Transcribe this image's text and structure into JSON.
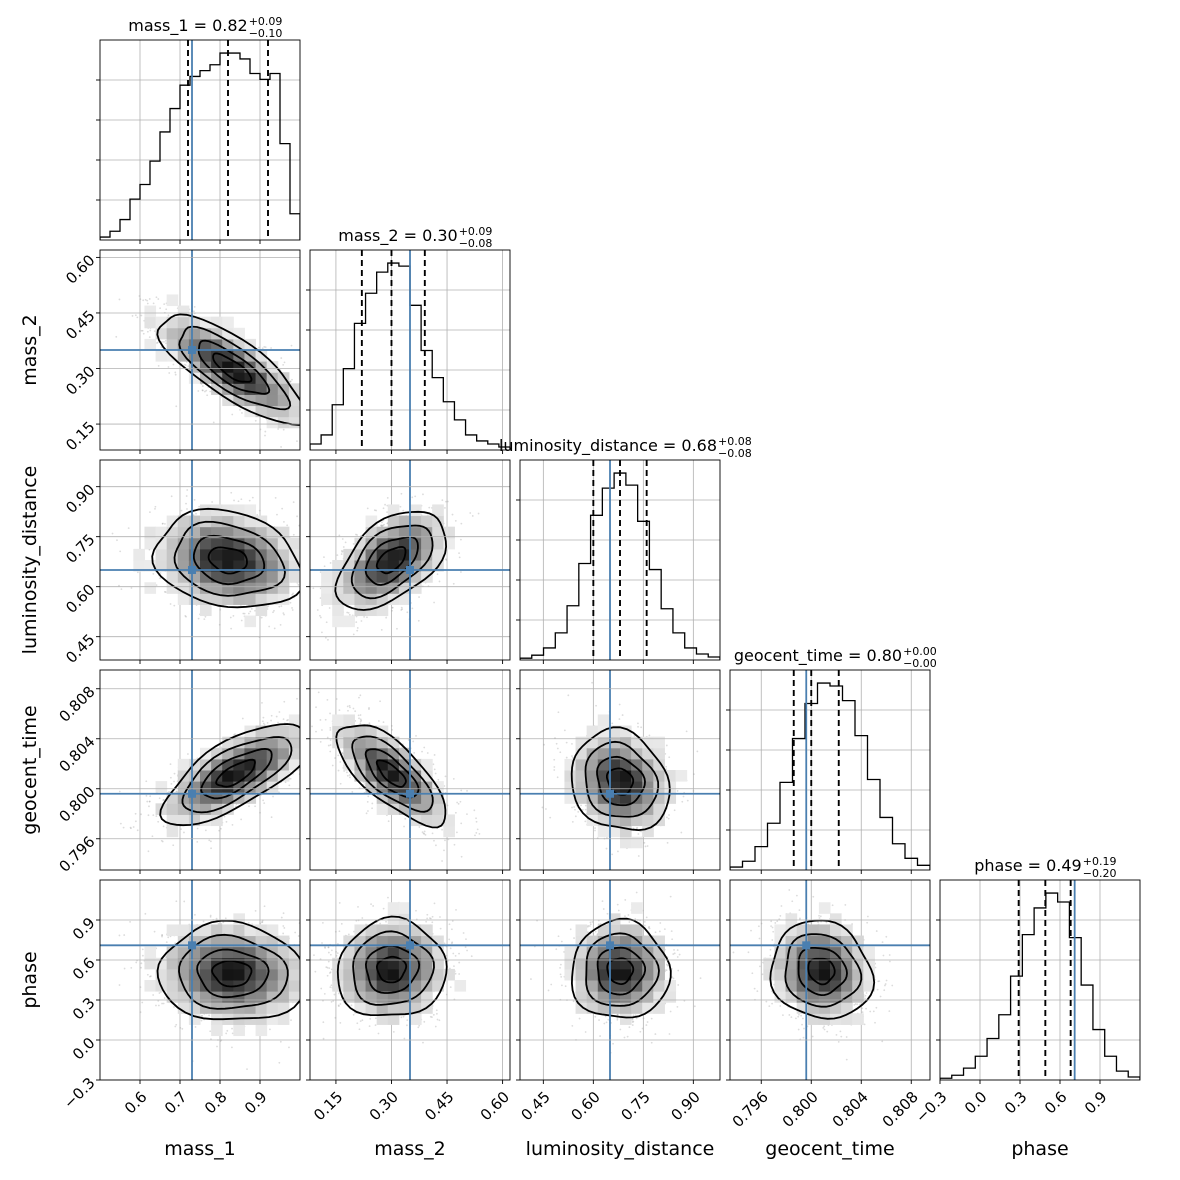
{
  "chart_data": {
    "type": "scatter",
    "description": "corner",
    "parameters": [
      {
        "name": "mass_1",
        "label": "mass_1",
        "range": [
          0.5,
          1.0
        ],
        "ticks": [
          0.6,
          0.7,
          0.8,
          0.9
        ],
        "tick_labels": [
          "0.6",
          "0.7",
          "0.8",
          "0.9"
        ],
        "truth": 0.73,
        "hist": [
          0.5,
          1.5,
          3.5,
          7,
          9.5,
          13.5,
          18.5,
          22.5,
          26.5,
          28,
          29,
          30,
          32,
          32,
          31,
          28.5,
          27.5,
          28.5,
          16.5,
          4.5
        ],
        "median": 0.82,
        "q_lo": 0.72,
        "q_hi": 0.92,
        "title": "mass_1 = 0.82",
        "err_plus": "+0.09",
        "err_minus": "−0.10"
      },
      {
        "name": "mass_2",
        "label": "mass_2",
        "range": [
          0.08,
          0.62
        ],
        "ticks": [
          0.15,
          0.3,
          0.45,
          0.6
        ],
        "tick_labels": [
          "0.15",
          "0.30",
          "0.45",
          "0.60"
        ],
        "truth": 0.35,
        "hist": [
          1,
          2.5,
          7.5,
          13.5,
          21,
          26,
          29.5,
          31,
          30.5,
          24,
          16.5,
          12,
          8,
          5,
          2.5,
          1.5,
          1,
          0.5
        ],
        "median": 0.3,
        "q_lo": 0.22,
        "q_hi": 0.39,
        "title": "mass_2 = 0.30",
        "err_plus": "+0.09",
        "err_minus": "−0.08"
      },
      {
        "name": "luminosity_distance",
        "label": "luminosity_distance",
        "range": [
          0.38,
          0.98
        ],
        "ticks": [
          0.45,
          0.6,
          0.75,
          0.9
        ],
        "tick_labels": [
          "0.45",
          "0.60",
          "0.75",
          "0.90"
        ],
        "truth": 0.65,
        "hist": [
          0.3,
          0.8,
          2,
          4.5,
          9,
          16,
          24,
          28.5,
          31,
          29,
          23,
          15,
          8.5,
          4.5,
          2,
          1,
          0.5
        ],
        "median": 0.68,
        "q_lo": 0.6,
        "q_hi": 0.76,
        "title": "luminosity_distance = 0.68",
        "err_plus": "+0.08",
        "err_minus": "−0.08"
      },
      {
        "name": "geocent_time",
        "label": "geocent_time",
        "range": [
          0.7935,
          0.8095
        ],
        "ticks": [
          0.796,
          0.8,
          0.804,
          0.808
        ],
        "tick_labels": [
          "0.796",
          "0.800",
          "0.804",
          "0.808"
        ],
        "truth": 0.7996,
        "hist": [
          0.5,
          1.5,
          4,
          8,
          15,
          22.5,
          28.5,
          32,
          31.5,
          29,
          23,
          15.5,
          9,
          4.5,
          2,
          0.8
        ],
        "median": 0.8,
        "q_lo": 0.7986,
        "q_hi": 0.8022,
        "title": "geocent_time = 0.80",
        "err_plus": "+0.00",
        "err_minus": "−0.00"
      },
      {
        "name": "phase",
        "label": "phase",
        "range": [
          -0.3,
          1.2
        ],
        "ticks": [
          -0.3,
          0.0,
          0.3,
          0.6,
          0.9
        ],
        "tick_labels": [
          "−0.3",
          "0.0",
          "0.3",
          "0.6",
          "0.9"
        ],
        "truth": 0.71,
        "hist": [
          0.3,
          0.8,
          2,
          4,
          7,
          11,
          17.5,
          24.5,
          29,
          31.5,
          30,
          24,
          16,
          8.5,
          4,
          1.5,
          0.5
        ],
        "median": 0.49,
        "q_lo": 0.29,
        "q_hi": 0.68,
        "title": "phase = 0.49",
        "err_plus": "+0.19",
        "err_minus": "−0.20"
      }
    ],
    "pairs": [
      {
        "x": "mass_1",
        "y": "mass_2",
        "center": [
          0.83,
          0.3
        ],
        "spread": [
          0.1,
          0.08
        ],
        "rho": -0.78
      },
      {
        "x": "mass_1",
        "y": "luminosity_distance",
        "center": [
          0.82,
          0.68
        ],
        "spread": [
          0.1,
          0.08
        ],
        "rho": -0.2
      },
      {
        "x": "mass_2",
        "y": "luminosity_distance",
        "center": [
          0.3,
          0.68
        ],
        "spread": [
          0.08,
          0.08
        ],
        "rho": 0.5
      },
      {
        "x": "mass_1",
        "y": "geocent_time",
        "center": [
          0.84,
          0.8012
        ],
        "spread": [
          0.1,
          0.0022
        ],
        "rho": 0.7
      },
      {
        "x": "mass_2",
        "y": "geocent_time",
        "center": [
          0.3,
          0.8012
        ],
        "spread": [
          0.08,
          0.0022
        ],
        "rho": -0.72
      },
      {
        "x": "luminosity_distance",
        "y": "geocent_time",
        "center": [
          0.68,
          0.8006
        ],
        "spread": [
          0.08,
          0.0022
        ],
        "rho": -0.15
      },
      {
        "x": "mass_1",
        "y": "phase",
        "center": [
          0.83,
          0.5
        ],
        "spread": [
          0.1,
          0.2
        ],
        "rho": -0.05
      },
      {
        "x": "mass_2",
        "y": "phase",
        "center": [
          0.3,
          0.53
        ],
        "spread": [
          0.08,
          0.2
        ],
        "rho": 0.05
      },
      {
        "x": "luminosity_distance",
        "y": "phase",
        "center": [
          0.68,
          0.52
        ],
        "spread": [
          0.08,
          0.2
        ],
        "rho": 0.0
      },
      {
        "x": "geocent_time",
        "y": "phase",
        "center": [
          0.8008,
          0.52
        ],
        "spread": [
          0.0022,
          0.2
        ],
        "rho": -0.1
      }
    ],
    "colors": {
      "truth": "#4a7fb0",
      "density": "#000000",
      "samples": "#9a9a9a"
    },
    "grid": true
  }
}
